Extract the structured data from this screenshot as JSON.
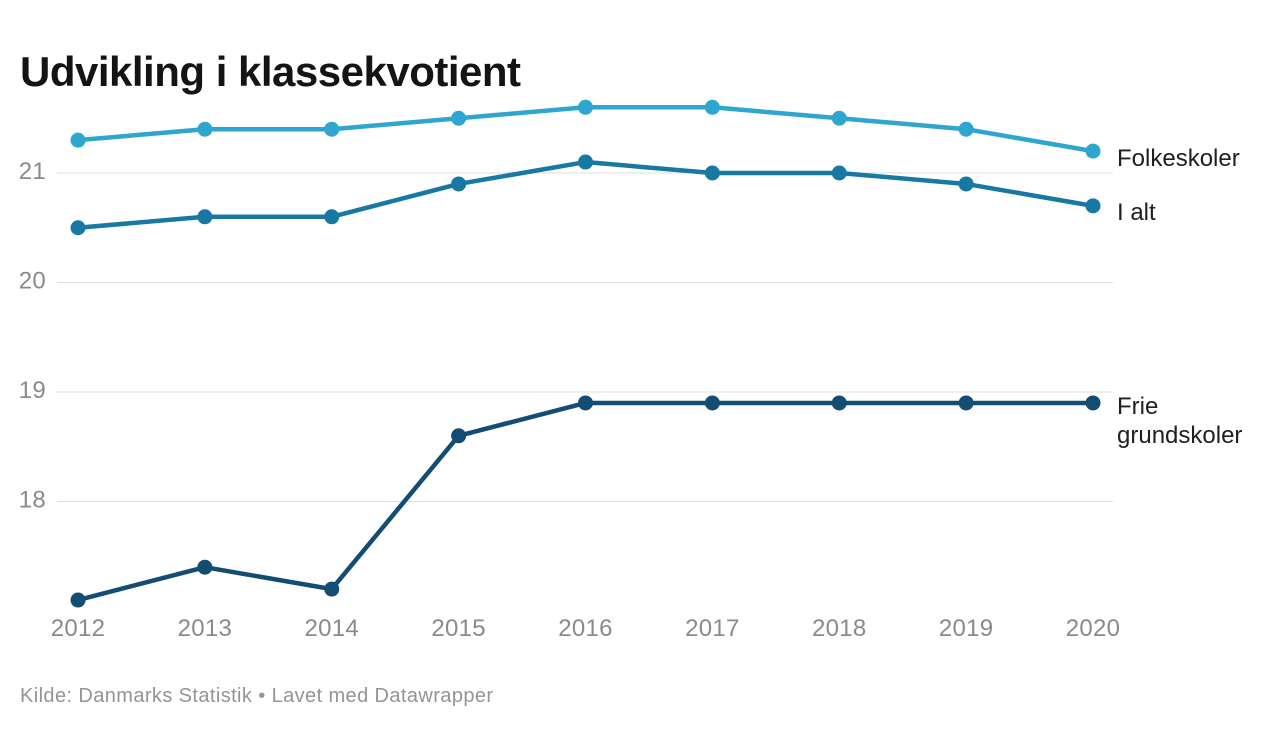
{
  "title": "Udvikling i klassekvotient",
  "footer": {
    "text": "Kilde: Danmarks Statistik • Lavet med Datawrapper"
  },
  "chart_data": {
    "type": "line",
    "x": [
      2012,
      2013,
      2014,
      2015,
      2016,
      2017,
      2018,
      2019,
      2020
    ],
    "series": [
      {
        "name": "Folkeskoler",
        "color": "#2ea6cf",
        "values": [
          21.3,
          21.4,
          21.4,
          21.5,
          21.6,
          21.6,
          21.5,
          21.4,
          21.2
        ]
      },
      {
        "name": "I alt",
        "color": "#1779a3",
        "values": [
          20.5,
          20.6,
          20.6,
          20.9,
          21.1,
          21.0,
          21.0,
          20.9,
          20.7
        ]
      },
      {
        "name": "Frie grundskoler",
        "color": "#134d73",
        "values": [
          17.1,
          17.4,
          17.2,
          18.6,
          18.9,
          18.9,
          18.9,
          18.9,
          18.9
        ]
      }
    ],
    "y_ticks": [
      21,
      20,
      19,
      18
    ],
    "ylim": [
      16.9,
      21.75
    ],
    "title": "Udvikling i klassekvotient",
    "xlabel": "",
    "ylabel": "",
    "grid": "horizontal-only",
    "legend_position": "direct-labels-right-of-lines"
  },
  "colors": {
    "background": "#ffffff",
    "grid": "#dedede",
    "axis_text": "#8a8a8a",
    "series_label_text": "#202020",
    "title_text": "#141414",
    "footer_text": "#949494"
  }
}
